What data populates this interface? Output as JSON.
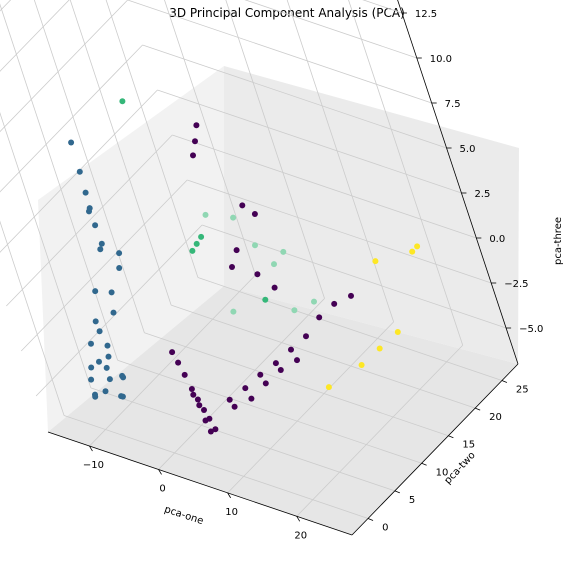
{
  "chart_data": {
    "type": "scatter",
    "title": "3D Principal Component Analysis (PCA)",
    "xlabel": "pca-one",
    "ylabel": "pca-two",
    "zlabel": "pca-three",
    "x_ticks": [
      "−10",
      "0",
      "10",
      "20"
    ],
    "y_ticks": [
      "0",
      "5",
      "10",
      "15",
      "20",
      "25"
    ],
    "z_ticks": [
      "−5.0",
      "−2.5",
      "0.0",
      "2.5",
      "5.0",
      "7.5",
      "10.0",
      "12.5"
    ],
    "grid": true,
    "colors": {
      "dark_purple": "#440154",
      "blue": "#31688e",
      "green": "#35b779",
      "light_green": "#90d7b3",
      "yellow": "#fde725",
      "pane_light": "#f2f2f2",
      "pane_mid": "#ebebeb",
      "pane_floor": "#e6e6e6",
      "grid": "#cccccc"
    },
    "series": [
      {
        "color_key": "blue",
        "points": [
          [
            -11.8,
            9.5,
            1.2
          ],
          [
            -12.4,
            9.8,
            1.8
          ],
          [
            -12.0,
            10.0,
            4.0
          ],
          [
            -11.7,
            9.6,
            3.0
          ],
          [
            -12.2,
            10.3,
            5.5
          ],
          [
            -11.4,
            9.2,
            2.3
          ],
          [
            -10.9,
            8.8,
            0.5
          ],
          [
            -13.0,
            7.5,
            -2.0
          ],
          [
            -12.8,
            6.0,
            -3.2
          ],
          [
            -12.1,
            5.5,
            -3.5
          ],
          [
            -11.0,
            5.0,
            -4.0
          ],
          [
            -10.5,
            4.2,
            -4.3
          ],
          [
            -10.0,
            3.0,
            -4.5
          ],
          [
            -9.5,
            2.5,
            -4.9
          ],
          [
            -11.5,
            3.5,
            -4.5
          ],
          [
            -12.5,
            3.0,
            -4.8
          ],
          [
            -9.0,
            4.0,
            -5.2
          ],
          [
            -8.5,
            3.5,
            -4.9
          ],
          [
            -10.0,
            6.5,
            -2.5
          ],
          [
            -9.8,
            7.0,
            -1.5
          ],
          [
            -10.5,
            8.0,
            0.5
          ],
          [
            -9.0,
            8.5,
            -0.5
          ],
          [
            -8.8,
            9.0,
            0.2
          ],
          [
            -13.0,
            4.5,
            -4.0
          ],
          [
            -12.0,
            2.0,
            -5.1
          ],
          [
            -11.0,
            1.0,
            -5.5
          ],
          [
            -10.5,
            0.5,
            -5.4
          ],
          [
            -9.7,
            1.5,
            -5.3
          ],
          [
            -8.0,
            2.0,
            -5.5
          ],
          [
            -7.5,
            1.8,
            -5.4
          ]
        ]
      },
      {
        "color_key": "dark_purple",
        "points": [
          [
            -2.0,
            6.0,
            -3.5
          ],
          [
            -1.0,
            5.5,
            -3.8
          ],
          [
            0.0,
            5.0,
            -4.2
          ],
          [
            1.0,
            4.5,
            -4.7
          ],
          [
            2.0,
            4.0,
            -5.0
          ],
          [
            3.0,
            3.5,
            -5.3
          ],
          [
            4.0,
            3.0,
            -5.5
          ],
          [
            5.0,
            2.5,
            -5.8
          ],
          [
            2.5,
            3.5,
            -5.1
          ],
          [
            1.5,
            4.0,
            -4.8
          ],
          [
            3.5,
            2.8,
            -5.6
          ],
          [
            4.5,
            2.2,
            -5.9
          ],
          [
            6.0,
            5.0,
            -4.8
          ],
          [
            7.0,
            4.5,
            -4.9
          ],
          [
            8.0,
            6.0,
            -4.2
          ],
          [
            9.0,
            5.5,
            -4.5
          ],
          [
            10.0,
            7.0,
            -3.5
          ],
          [
            11.0,
            6.5,
            -3.7
          ],
          [
            12.0,
            8.0,
            -2.9
          ],
          [
            13.0,
            7.5,
            -3.0
          ],
          [
            14.0,
            9.0,
            -2.2
          ],
          [
            15.0,
            8.5,
            -2.5
          ],
          [
            16.0,
            10.0,
            -1.5
          ],
          [
            18.0,
            11.0,
            -0.5
          ],
          [
            20.0,
            12.0,
            0.2
          ],
          [
            22.0,
            13.0,
            0.6
          ],
          [
            5.0,
            12.0,
            6.5
          ],
          [
            5.5,
            12.5,
            7.2
          ],
          [
            6.0,
            13.0,
            8.0
          ],
          [
            8.0,
            14.0,
            3.5
          ],
          [
            9.0,
            14.5,
            3.0
          ],
          [
            7.0,
            12.0,
            1.5
          ],
          [
            6.5,
            11.0,
            0.8
          ],
          [
            8.5,
            12.5,
            0.2
          ],
          [
            10.0,
            13.0,
            -0.5
          ]
        ]
      },
      {
        "color_key": "green",
        "points": [
          [
            0.5,
            8.5,
            10.0
          ],
          [
            2.0,
            11.0,
            1.5
          ],
          [
            2.5,
            11.5,
            1.8
          ],
          [
            1.5,
            10.5,
            1.2
          ],
          [
            9.0,
            12.0,
            -1.0
          ]
        ]
      },
      {
        "color_key": "light_green",
        "points": [
          [
            5.0,
            11.0,
            3.5
          ],
          [
            7.0,
            13.0,
            3.0
          ],
          [
            8.5,
            13.5,
            1.5
          ],
          [
            10.0,
            14.0,
            0.5
          ],
          [
            11.0,
            15.0,
            1.0
          ],
          [
            12.0,
            13.0,
            -1.5
          ],
          [
            14.5,
            14.0,
            -1.0
          ],
          [
            5.5,
            10.0,
            -1.5
          ]
        ]
      },
      {
        "color_key": "yellow",
        "points": [
          [
            22.0,
            18.0,
            1.0
          ],
          [
            25.0,
            21.0,
            1.0
          ],
          [
            25.5,
            21.5,
            1.2
          ],
          [
            23.0,
            17.0,
            -2.5
          ],
          [
            21.5,
            15.0,
            -3.0
          ],
          [
            20.0,
            13.0,
            -3.5
          ],
          [
            17.0,
            10.0,
            -4.2
          ]
        ]
      }
    ]
  }
}
